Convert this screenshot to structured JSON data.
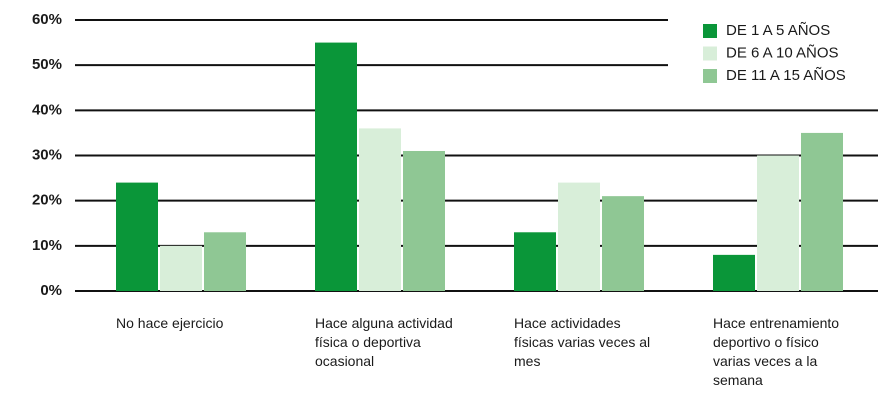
{
  "chart_data": {
    "type": "bar",
    "categories": [
      "No hace ejercicio",
      "Hace alguna actividad física o deportiva ocasional",
      "Hace actividades físicas varias veces al mes",
      "Hace entrenamiento deportivo o físico varias veces a la semana"
    ],
    "series": [
      {
        "name": "DE 1 A 5 AÑOS",
        "color": "#0a9639",
        "values": [
          24,
          55,
          13,
          8
        ]
      },
      {
        "name": "DE 6 A 10 AÑOS",
        "color": "#d8eed9",
        "values": [
          10,
          36,
          24,
          30
        ]
      },
      {
        "name": "DE 11 A 15 AÑOS",
        "color": "#8fc794",
        "values": [
          13,
          31,
          21,
          35
        ]
      }
    ],
    "ylim": [
      0,
      60
    ],
    "yticks": [
      {
        "value": 0,
        "label": "0%"
      },
      {
        "value": 10,
        "label": "10%"
      },
      {
        "value": 20,
        "label": "20%"
      },
      {
        "value": 30,
        "label": "30%"
      },
      {
        "value": 40,
        "label": "40%"
      },
      {
        "value": 50,
        "label": "50%"
      },
      {
        "value": 60,
        "label": "60%"
      }
    ],
    "grid": true,
    "legend": "top-right"
  }
}
